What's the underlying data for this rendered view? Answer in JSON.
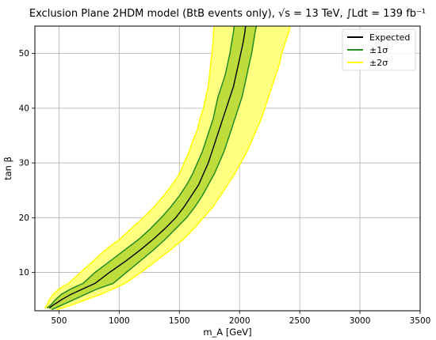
{
  "chart_data": {
    "type": "area",
    "title": "Exclusion Plane 2HDM model (BtB events only), √s = 13 TeV, ∫Ldt = 139 fb⁻¹",
    "xlabel": "m_A [GeV]",
    "ylabel": "tan β",
    "xlim": [
      300,
      3500
    ],
    "ylim": [
      3,
      55
    ],
    "x_ticks": [
      500,
      1000,
      1500,
      2000,
      2500,
      3000,
      3500
    ],
    "y_ticks": [
      10,
      20,
      30,
      40,
      50
    ],
    "grid": true,
    "legend_position": "top-right",
    "series": [
      {
        "name": "Expected",
        "kind": "line",
        "color": "#000000",
        "points": [
          [
            420,
            3.5
          ],
          [
            450,
            4
          ],
          [
            520,
            5
          ],
          [
            600,
            6
          ],
          [
            700,
            7
          ],
          [
            800,
            8
          ],
          [
            920,
            10
          ],
          [
            1050,
            12
          ],
          [
            1170,
            14
          ],
          [
            1280,
            16
          ],
          [
            1380,
            18
          ],
          [
            1470,
            20
          ],
          [
            1540,
            22
          ],
          [
            1600,
            24
          ],
          [
            1660,
            26
          ],
          [
            1700,
            28
          ],
          [
            1740,
            30
          ],
          [
            1770,
            32
          ],
          [
            1800,
            34
          ],
          [
            1830,
            36
          ],
          [
            1860,
            38
          ],
          [
            1890,
            40
          ],
          [
            1920,
            42
          ],
          [
            1950,
            44
          ],
          [
            1970,
            46
          ],
          [
            1990,
            48
          ],
          [
            2010,
            50
          ],
          [
            2030,
            52
          ],
          [
            2045,
            54
          ],
          [
            2050,
            55
          ]
        ]
      },
      {
        "name": "±1σ",
        "kind": "band",
        "color": "#228B22",
        "fill": "#bedd3c",
        "lower_edge": [
          [
            440,
            3.2
          ],
          [
            520,
            4
          ],
          [
            620,
            5
          ],
          [
            720,
            6
          ],
          [
            820,
            7
          ],
          [
            950,
            8
          ],
          [
            1060,
            10
          ],
          [
            1170,
            12
          ],
          [
            1280,
            14
          ],
          [
            1380,
            16
          ],
          [
            1470,
            18
          ],
          [
            1560,
            20
          ],
          [
            1630,
            22
          ],
          [
            1690,
            24
          ],
          [
            1740,
            26
          ],
          [
            1790,
            28
          ],
          [
            1830,
            30
          ],
          [
            1870,
            32
          ],
          [
            1900,
            34
          ],
          [
            1930,
            36
          ],
          [
            1960,
            38
          ],
          [
            1990,
            40
          ],
          [
            2020,
            42
          ],
          [
            2040,
            44
          ],
          [
            2060,
            46
          ],
          [
            2080,
            48
          ],
          [
            2100,
            50
          ],
          [
            2115,
            52
          ],
          [
            2130,
            54
          ],
          [
            2140,
            55
          ]
        ],
        "upper_edge": [
          [
            400,
            3.5
          ],
          [
            430,
            4
          ],
          [
            470,
            5
          ],
          [
            520,
            6
          ],
          [
            600,
            7
          ],
          [
            700,
            8
          ],
          [
            800,
            10
          ],
          [
            920,
            12
          ],
          [
            1040,
            14
          ],
          [
            1160,
            16
          ],
          [
            1260,
            18
          ],
          [
            1350,
            20
          ],
          [
            1430,
            22
          ],
          [
            1500,
            24
          ],
          [
            1560,
            26
          ],
          [
            1610,
            28
          ],
          [
            1650,
            30
          ],
          [
            1690,
            32
          ],
          [
            1720,
            34
          ],
          [
            1750,
            36
          ],
          [
            1780,
            38
          ],
          [
            1800,
            40
          ],
          [
            1820,
            42
          ],
          [
            1850,
            44
          ],
          [
            1880,
            46
          ],
          [
            1900,
            48
          ],
          [
            1920,
            50
          ],
          [
            1935,
            52
          ],
          [
            1950,
            54
          ],
          [
            1955,
            55
          ]
        ]
      },
      {
        "name": "±2σ",
        "kind": "band",
        "color": "#ffff00",
        "fill": "#ffff80",
        "lower_edge": [
          [
            480,
            3.2
          ],
          [
            600,
            4
          ],
          [
            720,
            5
          ],
          [
            850,
            6
          ],
          [
            950,
            7
          ],
          [
            1050,
            8
          ],
          [
            1180,
            10
          ],
          [
            1300,
            12
          ],
          [
            1420,
            14
          ],
          [
            1530,
            16
          ],
          [
            1620,
            18
          ],
          [
            1700,
            20
          ],
          [
            1780,
            22
          ],
          [
            1840,
            24
          ],
          [
            1900,
            26
          ],
          [
            1960,
            28
          ],
          [
            2010,
            30
          ],
          [
            2060,
            32
          ],
          [
            2100,
            34
          ],
          [
            2140,
            36
          ],
          [
            2180,
            38
          ],
          [
            2210,
            40
          ],
          [
            2240,
            42
          ],
          [
            2270,
            44
          ],
          [
            2300,
            46
          ],
          [
            2330,
            48
          ],
          [
            2350,
            50
          ],
          [
            2380,
            52
          ],
          [
            2410,
            54
          ],
          [
            2420,
            55
          ]
        ],
        "upper_edge": [
          [
            380,
            3.5
          ],
          [
            400,
            4
          ],
          [
            420,
            5
          ],
          [
            450,
            6
          ],
          [
            500,
            7
          ],
          [
            580,
            8
          ],
          [
            680,
            10
          ],
          [
            780,
            12
          ],
          [
            880,
            14
          ],
          [
            1000,
            16
          ],
          [
            1100,
            18
          ],
          [
            1200,
            20
          ],
          [
            1290,
            22
          ],
          [
            1370,
            24
          ],
          [
            1440,
            26
          ],
          [
            1500,
            28
          ],
          [
            1540,
            30
          ],
          [
            1580,
            32
          ],
          [
            1610,
            34
          ],
          [
            1650,
            36
          ],
          [
            1670,
            38
          ],
          [
            1700,
            40
          ],
          [
            1720,
            42
          ],
          [
            1740,
            44
          ],
          [
            1750,
            46
          ],
          [
            1760,
            48
          ],
          [
            1770,
            50
          ],
          [
            1780,
            52
          ],
          [
            1785,
            54
          ],
          [
            1790,
            55
          ]
        ]
      }
    ]
  }
}
